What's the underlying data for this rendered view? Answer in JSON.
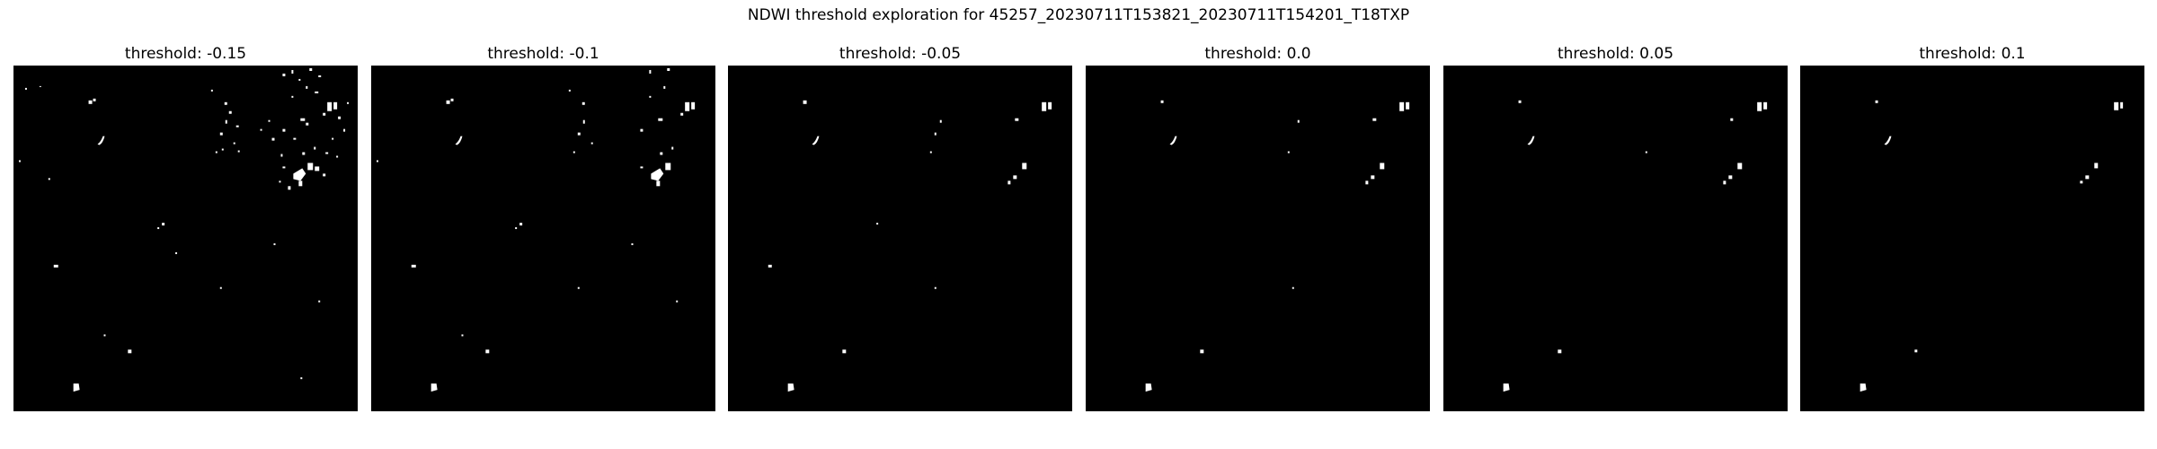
{
  "figure": {
    "title": "NDWI threshold exploration for 45257_20230711T153821_20230711T154201_T18TXP"
  },
  "panels": [
    {
      "title": "threshold: -0.15",
      "threshold": -0.15
    },
    {
      "title": "threshold: -0.1",
      "threshold": -0.1
    },
    {
      "title": "threshold: -0.05",
      "threshold": -0.05
    },
    {
      "title": "threshold: 0.0",
      "threshold": 0.0
    },
    {
      "title": "threshold: 0.05",
      "threshold": 0.05
    },
    {
      "title": "threshold: 0.1",
      "threshold": 0.1
    }
  ],
  "colors": {
    "water": "#ffffff",
    "background": "#000000"
  }
}
